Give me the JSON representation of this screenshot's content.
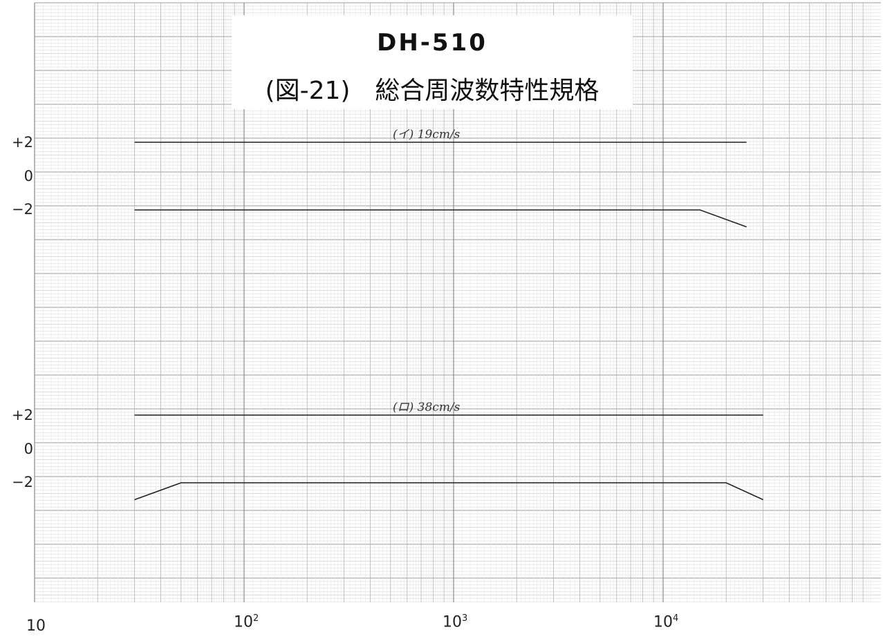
{
  "chart_data": {
    "type": "line",
    "title": "DH-510",
    "subtitle": "(図-21)　総合周波数特性規格",
    "x_scale": "log",
    "xlim": [
      10,
      90000
    ],
    "x_tick_labels": [
      {
        "value": 10,
        "base": "10",
        "exp": ""
      },
      {
        "value": 100,
        "base": "10",
        "exp": "2"
      },
      {
        "value": 1000,
        "base": "10",
        "exp": "3"
      },
      {
        "value": 10000,
        "base": "10",
        "exp": "4"
      }
    ],
    "grid": true,
    "panels": [
      {
        "label": "(イ) 19cm/s",
        "y_tick_labels": [
          "+2",
          "0",
          "−2"
        ],
        "y_ticks": [
          2,
          0,
          -2
        ],
        "series": [
          {
            "x": [
              30,
              25000
            ],
            "y": [
              2,
              2
            ]
          },
          {
            "x": [
              30,
              15000,
              25000
            ],
            "y": [
              -2,
              -2,
              -3
            ]
          }
        ]
      },
      {
        "label": "(ロ) 38cm/s",
        "y_tick_labels": [
          "+2",
          "0",
          "−2"
        ],
        "y_ticks": [
          2,
          0,
          -2
        ],
        "series": [
          {
            "x": [
              30,
              30000
            ],
            "y": [
              2,
              2
            ]
          },
          {
            "x": [
              30,
              50,
              20000,
              30000
            ],
            "y": [
              -3,
              -2,
              -2,
              -3
            ]
          }
        ]
      }
    ]
  }
}
